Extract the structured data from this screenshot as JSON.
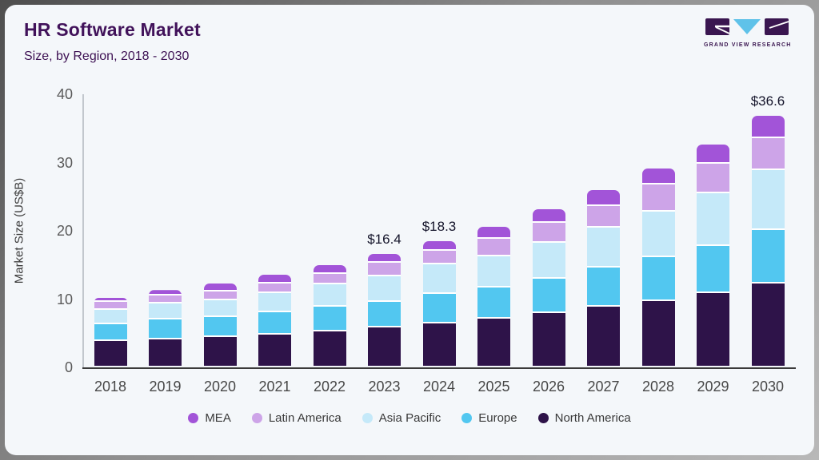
{
  "header": {
    "title": "HR Software Market",
    "subtitle": "Size, by Region, 2018 - 2030"
  },
  "logo": {
    "text": "GRAND VIEW RESEARCH",
    "brand_purple": "#3a1650",
    "brand_blue": "#5fc2e9"
  },
  "colors": {
    "card_background": "#f4f7fa",
    "title_text": "#41125a",
    "axis_line": "#3a3a3a",
    "tick_text": "#5a5a5a"
  },
  "chart_data": {
    "type": "bar",
    "stacked": true,
    "title": "HR Software Market Size, by Region, 2018 - 2030",
    "xlabel": "",
    "ylabel": "Market Size (US$B)",
    "ylim": [
      0,
      40
    ],
    "y_ticks": [
      0,
      10,
      20,
      30,
      40
    ],
    "grid": false,
    "legend_position": "bottom",
    "categories": [
      "2018",
      "2019",
      "2020",
      "2021",
      "2022",
      "2023",
      "2024",
      "2025",
      "2026",
      "2027",
      "2028",
      "2029",
      "2030"
    ],
    "series": [
      {
        "name": "North America",
        "color": "#2e1349",
        "values": [
          3.6,
          3.9,
          4.2,
          4.6,
          5.0,
          5.6,
          6.2,
          6.9,
          7.7,
          8.7,
          9.5,
          10.6,
          12.0
        ]
      },
      {
        "name": "Europe",
        "color": "#52c7f0",
        "values": [
          2.5,
          2.9,
          2.9,
          3.2,
          3.6,
          3.8,
          4.3,
          4.6,
          5.1,
          5.7,
          6.4,
          7.0,
          7.9
        ]
      },
      {
        "name": "Asia Pacific",
        "color": "#c5e9f9",
        "values": [
          2.1,
          2.3,
          2.5,
          2.9,
          3.3,
          3.7,
          4.3,
          4.5,
          5.2,
          5.8,
          6.7,
          7.7,
          8.8
        ]
      },
      {
        "name": "Latin America",
        "color": "#cda4e8",
        "values": [
          1.1,
          1.2,
          1.3,
          1.4,
          1.55,
          2.0,
          2.1,
          2.6,
          2.9,
          3.2,
          3.9,
          4.3,
          4.6
        ]
      },
      {
        "name": "MEA",
        "color": "#a254d8",
        "values": [
          0.7,
          0.8,
          1.2,
          1.2,
          1.25,
          1.3,
          1.4,
          1.8,
          2.0,
          2.3,
          2.4,
          2.8,
          3.3
        ]
      }
    ],
    "totals": [
      10.0,
      11.1,
      12.1,
      13.3,
      14.7,
      16.4,
      18.3,
      20.4,
      22.9,
      25.7,
      28.9,
      32.4,
      36.6
    ],
    "annotations": [
      {
        "category": "2023",
        "label": "$16.4"
      },
      {
        "category": "2024",
        "label": "$18.3"
      },
      {
        "category": "2030",
        "label": "$36.6"
      }
    ]
  }
}
